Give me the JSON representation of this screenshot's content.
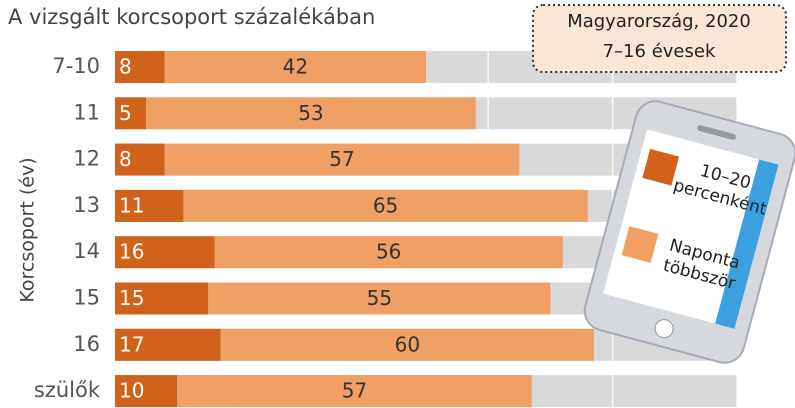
{
  "chart_data": {
    "type": "stacked-bar-horizontal",
    "title": "A vizsgált korcsoport százalékában",
    "y_label": "Korcsoport (év)",
    "annotation": [
      "Magyarország, 2020",
      "7–16 évesek"
    ],
    "categories": [
      "7-10",
      "11",
      "12",
      "13",
      "14",
      "15",
      "16",
      "szülők"
    ],
    "series": [
      {
        "name": "10–20 percenként",
        "color": "#d0621b",
        "values": [
          8,
          5,
          8,
          11,
          16,
          15,
          17,
          10
        ]
      },
      {
        "name": "Naponta többször",
        "color": "#f0a064",
        "values": [
          42,
          53,
          57,
          65,
          56,
          55,
          60,
          57
        ]
      }
    ],
    "xlim": [
      0,
      100
    ],
    "xticks": [
      0,
      20,
      40,
      60,
      80,
      100
    ],
    "grid": true,
    "track_color": "#d9d9d9"
  }
}
